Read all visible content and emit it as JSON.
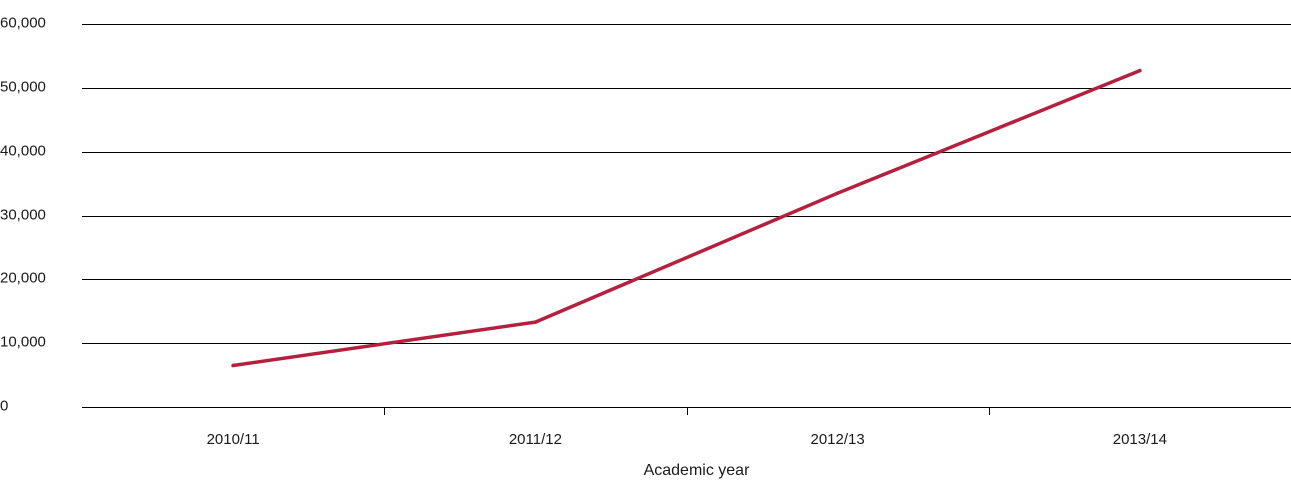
{
  "chart_data": {
    "type": "line",
    "title": "",
    "xlabel": "Academic year",
    "ylabel": "",
    "categories": [
      "2010/11",
      "2011/12",
      "2012/13",
      "2013/14"
    ],
    "series": [
      {
        "values": [
          6500,
          13300,
          33500,
          52700
        ],
        "color": "#b5203f"
      }
    ],
    "ylim": [
      0,
      60000
    ],
    "yticks": [
      0,
      10000,
      20000,
      30000,
      40000,
      50000,
      60000
    ],
    "ytick_labels": [
      "0",
      "10,000",
      "20,000",
      "30,000",
      "40,000",
      "50,000",
      "60,000"
    ],
    "grid": true,
    "legend": "none"
  }
}
